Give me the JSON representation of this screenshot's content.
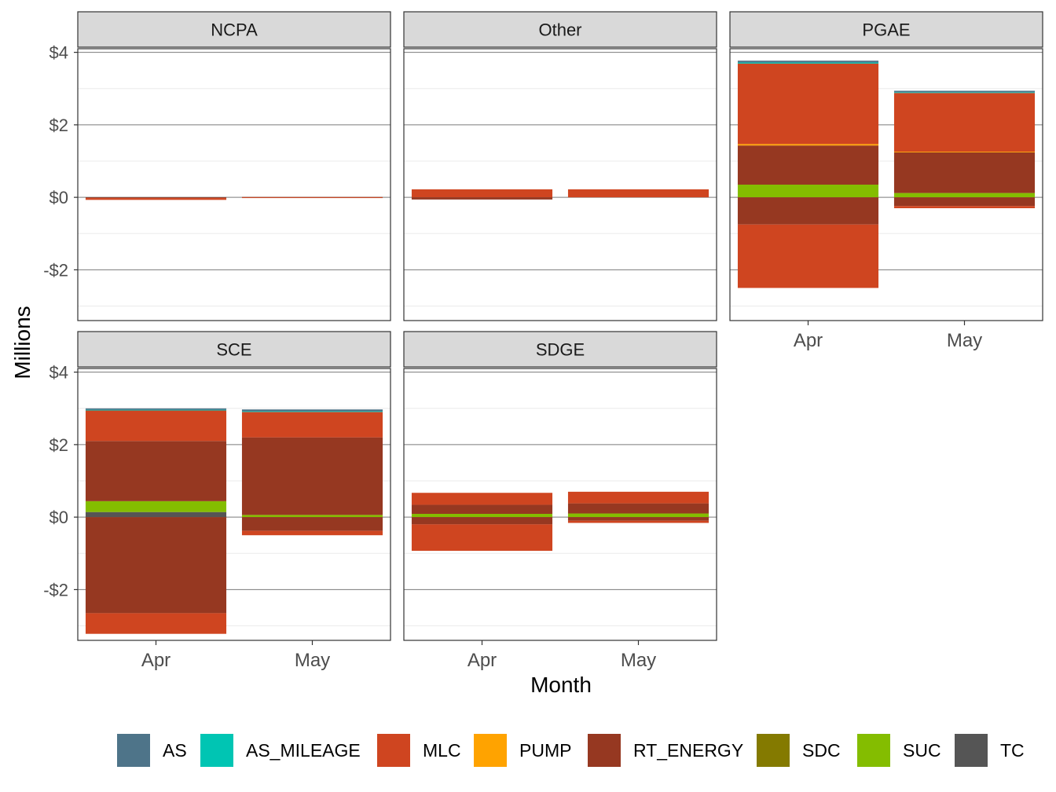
{
  "chart_data": {
    "type": "bar",
    "stacked": true,
    "facet_variable": "utility",
    "xlabel": "Month",
    "ylabel": "Millions",
    "ylim": [
      -3.4,
      4.1
    ],
    "y_tick_values": [
      -2,
      0,
      2,
      4
    ],
    "y_tick_labels": [
      "-$2",
      "$0",
      "$2",
      "$4"
    ],
    "categories": [
      "Apr",
      "May"
    ],
    "grid": "major and minor",
    "legend_position": "bottom",
    "legend": [
      {
        "name": "AS",
        "color": "#4E7489"
      },
      {
        "name": "AS_MILEAGE",
        "color": "#00C5B3"
      },
      {
        "name": "MLC",
        "color": "#CF4520"
      },
      {
        "name": "PUMP",
        "color": "#FFA300"
      },
      {
        "name": "RT_ENERGY",
        "color": "#963821"
      },
      {
        "name": "SDC",
        "color": "#847A00"
      },
      {
        "name": "SUC",
        "color": "#84BD00"
      },
      {
        "name": "TC",
        "color": "#555555"
      }
    ],
    "facets": [
      {
        "name": "NCPA",
        "bars": [
          {
            "month": "Apr",
            "positive": [],
            "negative": [
              {
                "component": "RT_ENERGY",
                "value": -0.02
              },
              {
                "component": "MLC",
                "value": -0.05
              }
            ]
          },
          {
            "month": "May",
            "positive": [
              {
                "component": "RT_ENERGY",
                "value": 0.01
              }
            ],
            "negative": [
              {
                "component": "MLC",
                "value": -0.02
              }
            ]
          }
        ]
      },
      {
        "name": "Other",
        "bars": [
          {
            "month": "Apr",
            "positive": [
              {
                "component": "MLC",
                "value": 0.22
              }
            ],
            "negative": [
              {
                "component": "RT_ENERGY",
                "value": -0.06
              }
            ]
          },
          {
            "month": "May",
            "positive": [
              {
                "component": "MLC",
                "value": 0.22
              }
            ],
            "negative": []
          }
        ]
      },
      {
        "name": "PGAE",
        "bars": [
          {
            "month": "Apr",
            "positive": [
              {
                "component": "SUC",
                "value": 0.35
              },
              {
                "component": "RT_ENERGY",
                "value": 1.08
              },
              {
                "component": "PUMP",
                "value": 0.04
              },
              {
                "component": "MLC",
                "value": 2.22
              },
              {
                "component": "AS_MILEAGE",
                "value": 0.03
              },
              {
                "component": "AS",
                "value": 0.05
              }
            ],
            "negative": [
              {
                "component": "RT_ENERGY",
                "value": -0.75
              },
              {
                "component": "MLC",
                "value": -1.75
              }
            ]
          },
          {
            "month": "May",
            "positive": [
              {
                "component": "SUC",
                "value": 0.12
              },
              {
                "component": "RT_ENERGY",
                "value": 1.12
              },
              {
                "component": "PUMP",
                "value": 0.02
              },
              {
                "component": "MLC",
                "value": 1.62
              },
              {
                "component": "AS_MILEAGE",
                "value": 0.02
              },
              {
                "component": "AS",
                "value": 0.04
              }
            ],
            "negative": [
              {
                "component": "RT_ENERGY",
                "value": -0.24
              },
              {
                "component": "MLC",
                "value": -0.06
              }
            ]
          }
        ]
      },
      {
        "name": "SCE",
        "bars": [
          {
            "month": "Apr",
            "positive": [
              {
                "component": "TC",
                "value": 0.14
              },
              {
                "component": "SUC",
                "value": 0.3
              },
              {
                "component": "RT_ENERGY",
                "value": 1.66
              },
              {
                "component": "MLC",
                "value": 0.84
              },
              {
                "component": "AS_MILEAGE",
                "value": 0.02
              },
              {
                "component": "AS",
                "value": 0.04
              }
            ],
            "negative": [
              {
                "component": "RT_ENERGY",
                "value": -2.65
              },
              {
                "component": "MLC",
                "value": -0.57
              }
            ]
          },
          {
            "month": "May",
            "positive": [
              {
                "component": "SUC",
                "value": 0.06
              },
              {
                "component": "RT_ENERGY",
                "value": 2.14
              },
              {
                "component": "MLC",
                "value": 0.7
              },
              {
                "component": "AS_MILEAGE",
                "value": 0.02
              },
              {
                "component": "AS",
                "value": 0.05
              }
            ],
            "negative": [
              {
                "component": "RT_ENERGY",
                "value": -0.38
              },
              {
                "component": "MLC",
                "value": -0.12
              }
            ]
          }
        ]
      },
      {
        "name": "SDGE",
        "bars": [
          {
            "month": "Apr",
            "positive": [
              {
                "component": "SUC",
                "value": 0.09
              },
              {
                "component": "RT_ENERGY",
                "value": 0.25
              },
              {
                "component": "MLC",
                "value": 0.33
              }
            ],
            "negative": [
              {
                "component": "RT_ENERGY",
                "value": -0.2
              },
              {
                "component": "MLC",
                "value": -0.73
              }
            ]
          },
          {
            "month": "May",
            "positive": [
              {
                "component": "SUC",
                "value": 0.1
              },
              {
                "component": "RT_ENERGY",
                "value": 0.28
              },
              {
                "component": "MLC",
                "value": 0.32
              }
            ],
            "negative": [
              {
                "component": "RT_ENERGY",
                "value": -0.1
              },
              {
                "component": "MLC",
                "value": -0.06
              }
            ]
          }
        ]
      }
    ]
  }
}
